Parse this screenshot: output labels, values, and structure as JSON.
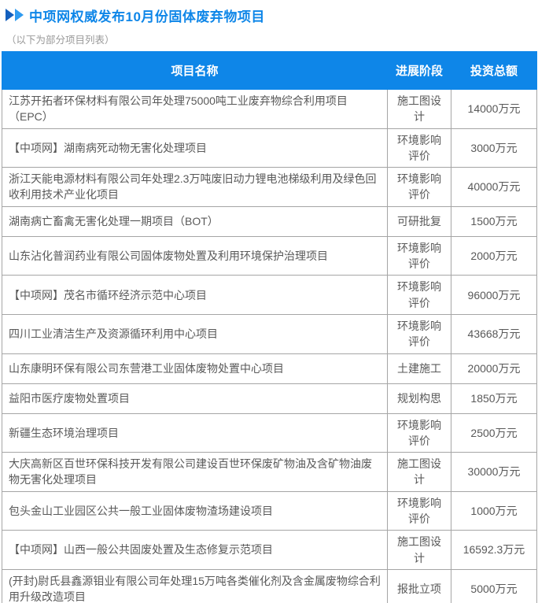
{
  "page": {
    "title": "中项网权威发布10月份固体废弃物项目",
    "subtitle": "（以下为部分项目列表）"
  },
  "icons": {
    "fast_forward_icon": "double-right-triangle"
  },
  "colors": {
    "accent_blue": "#0E86E8",
    "arrow_dark_blue": "#1460BE",
    "arrow_light_blue": "#2F9BF0",
    "header_text": "#FFFFFF",
    "body_text": "#595959",
    "subtitle_grey": "#999999",
    "border_grey": "#A5A5A5"
  },
  "table": {
    "columns": [
      "项目名称",
      "进展阶段",
      "投资总额"
    ],
    "rows": [
      {
        "name": "江苏开拓者环保材料有限公司年处理75000吨工业废弃物综合利用项目（EPC）",
        "stage": "施工图设计",
        "investment": "14000万元"
      },
      {
        "name": "【中项网】湖南病死动物无害化处理项目",
        "stage": "环境影响评价",
        "investment": "3000万元"
      },
      {
        "name": "浙江天能电源材料有限公司年处理2.3万吨废旧动力锂电池梯级利用及绿色回收利用技术产业化项目",
        "stage": "环境影响评价",
        "investment": "40000万元"
      },
      {
        "name": "湖南病亡畜禽无害化处理一期项目（BOT）",
        "stage": "可研批复",
        "investment": "1500万元"
      },
      {
        "name": "山东沾化普润药业有限公司固体废物处置及利用环境保护治理项目",
        "stage": "环境影响评价",
        "investment": "2000万元"
      },
      {
        "name": "【中项网】茂名市循环经济示范中心项目",
        "stage": "环境影响评价",
        "investment": "96000万元"
      },
      {
        "name": "四川工业清洁生产及资源循环利用中心项目",
        "stage": "环境影响评价",
        "investment": "43668万元"
      },
      {
        "name": "山东康明环保有限公司东营港工业固体废物处置中心项目",
        "stage": "土建施工",
        "investment": "20000万元"
      },
      {
        "name": "益阳市医疗废物处置项目",
        "stage": "规划构思",
        "investment": "1850万元"
      },
      {
        "name": "新疆生态环境治理项目",
        "stage": "环境影响评价",
        "investment": "2500万元"
      },
      {
        "name": "大庆高新区百世环保科技开发有限公司建设百世环保废矿物油及含矿物油废物无害化处理项目",
        "stage": "施工图设计",
        "investment": "30000万元"
      },
      {
        "name": "包头金山工业园区公共一般工业固体废物渣场建设项目",
        "stage": "环境影响评价",
        "investment": "1000万元"
      },
      {
        "name": "【中项网】山西一般公共固废处置及生态修复示范项目",
        "stage": "施工图设计",
        "investment": "16592.3万元"
      },
      {
        "name": "(开封)尉氏县鑫源钼业有限公司年处理15万吨各类催化剂及含金属废物综合利用升级改造项目",
        "stage": "报批立项",
        "investment": "5000万元"
      }
    ]
  }
}
